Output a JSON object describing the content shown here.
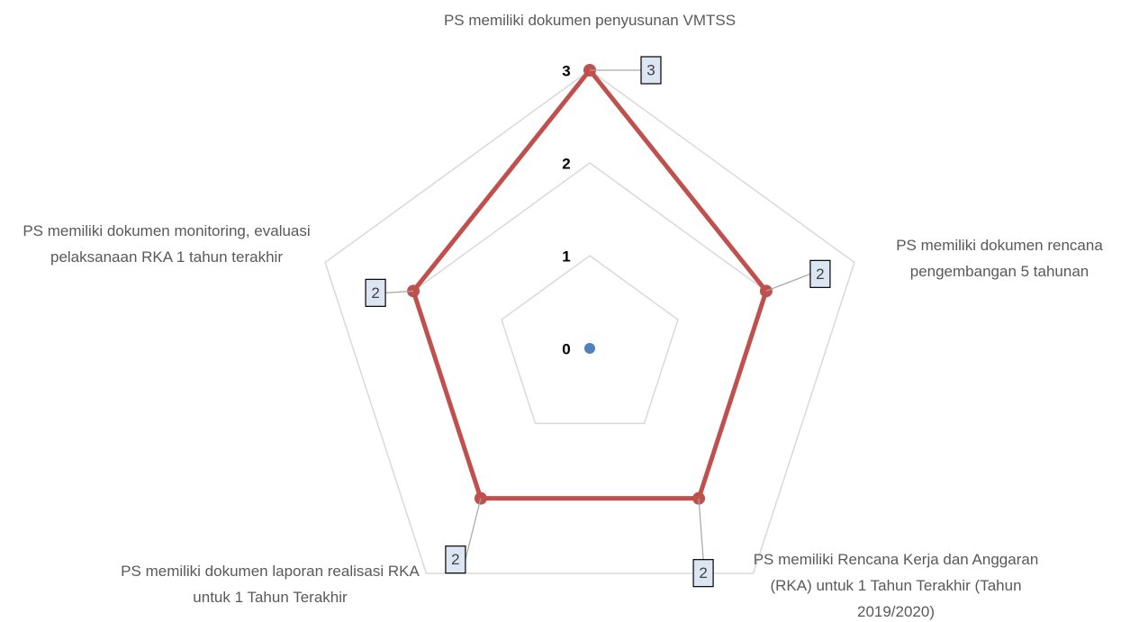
{
  "chart_data": {
    "type": "radar",
    "categories": [
      "PS memiliki dokumen penyusunan VMTSS",
      "PS memiliki dokumen rencana pengembangan 5 tahunan",
      "PS memiliki Rencana Kerja dan Anggaran (RKA) untuk 1 Tahun Terakhir (Tahun 2019/2020)",
      "PS memiliki dokumen laporan realisasi RKA untuk 1 Tahun Terakhir",
      "PS memiliki dokumen monitoring, evaluasi pelaksanaan RKA 1 tahun terakhir"
    ],
    "values": [
      3,
      2,
      2,
      2,
      2
    ],
    "color": "#c0504d",
    "rlim": [
      0,
      3
    ],
    "rticks": [
      0,
      1,
      2,
      3
    ],
    "grid": true
  }
}
